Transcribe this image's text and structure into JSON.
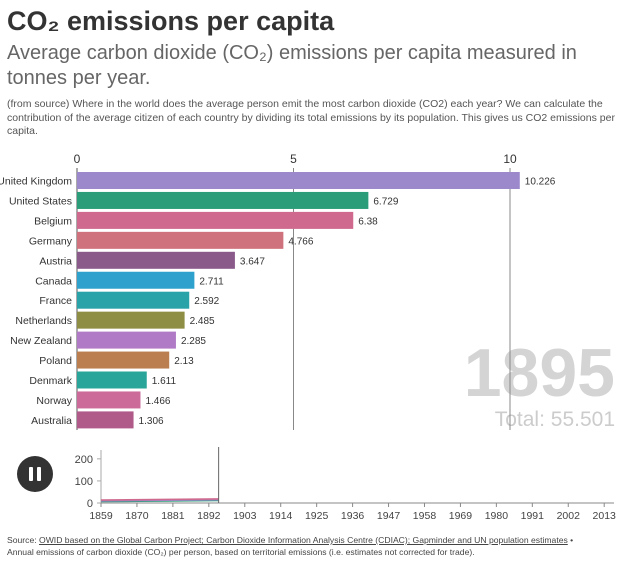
{
  "header": {
    "title": "CO₂ emissions per capita",
    "subtitle": "Average carbon dioxide (CO₂) emissions per capita measured in tonnes per year.",
    "description": "(from source) Where in the world does the average person emit the most carbon dioxide (CO2) each year? We can calculate the contribution of the average citizen of each country by dividing its total emissions by its population. This gives us CO2 emissions per capita."
  },
  "chart_data": {
    "type": "bar",
    "orientation": "horizontal",
    "categories": [
      "United Kingdom",
      "United States",
      "Belgium",
      "Germany",
      "Austria",
      "Canada",
      "France",
      "Netherlands",
      "New Zealand",
      "Poland",
      "Denmark",
      "Norway",
      "Australia"
    ],
    "values": [
      10.226,
      6.729,
      6.38,
      4.766,
      3.647,
      2.711,
      2.592,
      2.485,
      2.285,
      2.13,
      1.611,
      1.466,
      1.306
    ],
    "value_labels": [
      "10.226",
      "6.729",
      "6.38",
      "4.766",
      "3.647",
      "2.711",
      "2.592",
      "2.485",
      "2.285",
      "2.13",
      "1.611",
      "1.466",
      "1.306"
    ],
    "colors": [
      "#9b89cc",
      "#2b9d78",
      "#cf6a8e",
      "#cf727d",
      "#8a5a8a",
      "#2ea2cc",
      "#2aa3a8",
      "#8e8e45",
      "#b07ac6",
      "#bb7f4f",
      "#2aa59a",
      "#cc6b9a",
      "#b05a8a"
    ],
    "xlim": [
      0,
      10.5
    ],
    "ticks": [
      0,
      5,
      10
    ],
    "tick_labels": [
      "0",
      "5",
      "10"
    ],
    "year": "1895",
    "total_label": "Total: 55.501",
    "timeline": {
      "x_ticks": [
        "1859",
        "1870",
        "1881",
        "1892",
        "1903",
        "1914",
        "1925",
        "1936",
        "1947",
        "1958",
        "1969",
        "1980",
        "1991",
        "2002",
        "2013"
      ],
      "y_ticks": [
        "0",
        "100",
        "200"
      ],
      "x_range": [
        1859,
        2016
      ],
      "y_range": [
        0,
        240
      ],
      "current_year": 1895,
      "series_colors": [
        "#2b9d78",
        "#9b89cc",
        "#cf6a8e"
      ]
    }
  },
  "controls": {
    "pause_label": "Pause"
  },
  "footer": {
    "source_prefix": "Source: ",
    "source_link": "OWID based on the Global Carbon Project; Carbon Dioxide Information Analysis Centre (CDIAC); Gapminder and UN population estimates",
    "source_suffix": " •",
    "note": "Annual emissions of carbon dioxide (CO₂) per person, based on territorial emissions (i.e. estimates not corrected for trade)."
  }
}
